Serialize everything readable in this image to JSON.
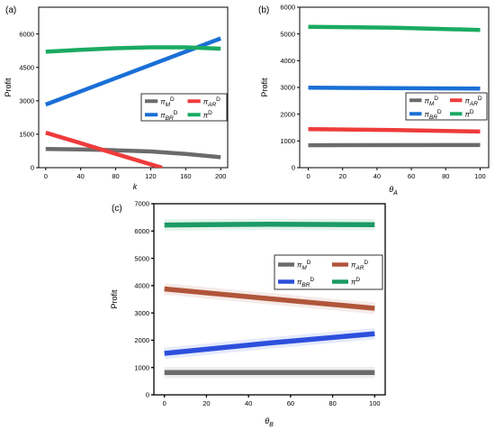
{
  "chart_data": [
    {
      "panel": "(a)",
      "type": "line",
      "ylabel": "Profit",
      "xlabel": "k",
      "xlim": [
        -8,
        208
      ],
      "ylim": [
        0,
        7200
      ],
      "xticks": [
        0,
        40,
        80,
        120,
        160,
        200
      ],
      "yticks": [
        0,
        1500,
        3000,
        4500,
        6000
      ],
      "legend_position": "right",
      "series": [
        {
          "name": "πMD",
          "color": "#6b6b6b",
          "x": [
            0,
            40,
            80,
            120,
            160,
            200
          ],
          "values": [
            840,
            820,
            780,
            730,
            620,
            470
          ]
        },
        {
          "name": "πARD",
          "color": "#ee3b3b",
          "x": [
            0,
            40,
            80,
            120,
            133
          ],
          "values": [
            1570,
            1100,
            620,
            150,
            0
          ]
        },
        {
          "name": "πBRD",
          "color": "#1a6fd6",
          "x": [
            0,
            200
          ],
          "values": [
            2830,
            5800
          ]
        },
        {
          "name": "πD",
          "color": "#1aaa62",
          "x": [
            0,
            40,
            80,
            120,
            160,
            200
          ],
          "values": [
            5200,
            5290,
            5360,
            5400,
            5400,
            5340
          ]
        }
      ]
    },
    {
      "panel": "(b)",
      "type": "line",
      "ylabel": "Profit",
      "xlabel": "θA",
      "xlim": [
        -5,
        105
      ],
      "ylim": [
        0,
        6000
      ],
      "xticks": [
        0,
        20,
        40,
        60,
        80,
        100
      ],
      "yticks": [
        0,
        1000,
        2000,
        3000,
        4000,
        5000,
        6000
      ],
      "legend_position": "right",
      "series": [
        {
          "name": "πMD",
          "color": "#6b6b6b",
          "x": [
            0,
            100
          ],
          "values": [
            840,
            845
          ]
        },
        {
          "name": "πARD",
          "color": "#ee3b3b",
          "x": [
            0,
            50,
            100
          ],
          "values": [
            1440,
            1410,
            1350
          ]
        },
        {
          "name": "πBRD",
          "color": "#1a6fd6",
          "x": [
            0,
            100
          ],
          "values": [
            2990,
            2960
          ]
        },
        {
          "name": "πD",
          "color": "#1aaa62",
          "x": [
            0,
            50,
            100
          ],
          "values": [
            5270,
            5230,
            5150
          ]
        }
      ]
    },
    {
      "panel": "(c)",
      "type": "line",
      "ylabel": "Profit",
      "xlabel": "θB",
      "xlim": [
        -5,
        105
      ],
      "ylim": [
        0,
        7000
      ],
      "xticks": [
        0,
        20,
        40,
        60,
        80,
        100
      ],
      "yticks": [
        0,
        1000,
        2000,
        3000,
        4000,
        5000,
        6000,
        7000
      ],
      "legend_position": "right",
      "series": [
        {
          "name": "πMD",
          "color": "#6b6b6b",
          "x": [
            0,
            100
          ],
          "values": [
            820,
            820
          ]
        },
        {
          "name": "πARD",
          "color": "#b0553a",
          "x": [
            0,
            50,
            100
          ],
          "values": [
            3880,
            3520,
            3170
          ]
        },
        {
          "name": "πBRD",
          "color": "#2d4fdc",
          "x": [
            0,
            50,
            100
          ],
          "values": [
            1520,
            1900,
            2240
          ]
        },
        {
          "name": "πD",
          "color": "#1b9a64",
          "x": [
            0,
            50,
            100
          ],
          "values": [
            6220,
            6250,
            6230
          ]
        }
      ]
    }
  ]
}
